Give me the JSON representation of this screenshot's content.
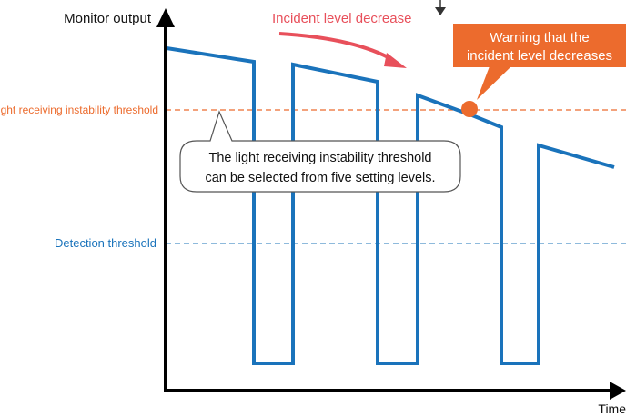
{
  "axes": {
    "y_label": "Monitor output",
    "x_label": "Time"
  },
  "thresholds": {
    "light_receiving_instability": "Light receiving instability threshold",
    "detection": "Detection threshold"
  },
  "annotations": {
    "incident_level_decrease": "Incident level decrease",
    "warning": [
      "Warning that the",
      "incident level decreases"
    ],
    "bubble": [
      "The light receiving instability threshold",
      "can be selected from five setting levels."
    ]
  },
  "colors": {
    "signal": "#1a73bb",
    "light_threshold": "#ec6b2d",
    "detection_threshold": "#1a73bb",
    "annotation_arrow": "#e8505b",
    "warning_fill": "#ec6b2d"
  }
}
